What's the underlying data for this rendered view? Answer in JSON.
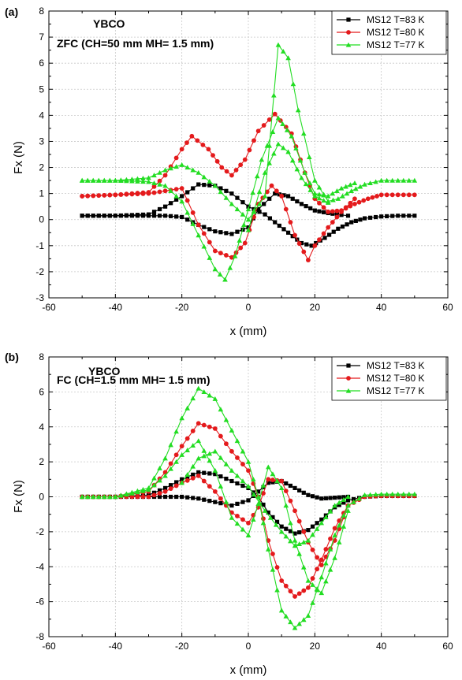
{
  "chart_data": [
    {
      "type": "line",
      "panel_label": "(a)",
      "annotations": [
        "YBCO",
        "ZFC (CH=50 mm MH= 1.5 mm)"
      ],
      "xlabel": "x (mm)",
      "ylabel": "Fx (N)",
      "xlim": [
        -60,
        60
      ],
      "ylim": [
        -3,
        8
      ],
      "xticks": [
        -60,
        -40,
        -20,
        0,
        20,
        40,
        60
      ],
      "yticks": [
        -3,
        -2,
        -1,
        0,
        1,
        2,
        3,
        4,
        5,
        6,
        7,
        8
      ],
      "grid": true,
      "legend_position": "top-right",
      "series": [
        {
          "name": "MS12 T=83 K",
          "color": "#000000",
          "marker": "square",
          "branches": [
            {
              "x": [
                -50,
                -40,
                -30,
                -25,
                -20,
                -15,
                -10,
                -5,
                0,
                5,
                8,
                12,
                16,
                19,
                23,
                27,
                31,
                35,
                40,
                45,
                50
              ],
              "y": [
                0.15,
                0.15,
                0.2,
                0.5,
                0.9,
                1.35,
                1.3,
                1.0,
                0.5,
                0.2,
                -0.1,
                -0.5,
                -0.9,
                -1.0,
                -0.7,
                -0.35,
                -0.1,
                0.05,
                0.12,
                0.15,
                0.15
              ]
            },
            {
              "x": [
                -50,
                -40,
                -30,
                -25,
                -20,
                -15,
                -10,
                -5,
                0,
                3,
                8,
                12,
                16,
                20,
                24,
                28,
                30
              ],
              "y": [
                0.15,
                0.15,
                0.15,
                0.15,
                0.1,
                -0.2,
                -0.45,
                -0.55,
                -0.3,
                0.4,
                1.0,
                0.9,
                0.6,
                0.35,
                0.25,
                0.18,
                0.15
              ]
            }
          ]
        },
        {
          "name": "MS12 T=80 K",
          "color": "#e41a1c",
          "marker": "circle",
          "branches": [
            {
              "x": [
                -50,
                -40,
                -30,
                -25,
                -20,
                -17,
                -12,
                -8,
                -5,
                -1,
                3,
                8,
                13,
                17,
                20,
                24,
                28,
                32,
                36,
                40,
                45,
                50
              ],
              "y": [
                0.9,
                0.95,
                1.05,
                1.7,
                2.7,
                3.2,
                2.7,
                2.0,
                1.7,
                2.3,
                3.4,
                4.05,
                3.3,
                1.8,
                0.8,
                0.3,
                0.35,
                0.6,
                0.8,
                0.95,
                0.95,
                0.95
              ]
            },
            {
              "x": [
                -50,
                -40,
                -30,
                -25,
                -20,
                -15,
                -10,
                -5,
                -1,
                3,
                7,
                10,
                14,
                18,
                20,
                24,
                28,
                32
              ],
              "y": [
                0.9,
                0.95,
                1.0,
                1.1,
                1.2,
                -0.2,
                -1.2,
                -1.45,
                -0.9,
                0.6,
                1.3,
                0.9,
                -0.6,
                -1.55,
                -1.0,
                -0.3,
                0.3,
                0.8
              ]
            }
          ]
        },
        {
          "name": "MS12 T=77 K",
          "color": "#22dd22",
          "marker": "triangle",
          "branches": [
            {
              "x": [
                -50,
                -40,
                -30,
                -25,
                -20,
                -15,
                -10,
                -5,
                0,
                5,
                9,
                12,
                15,
                20,
                24,
                27,
                31,
                35,
                40,
                45,
                50
              ],
              "y": [
                1.5,
                1.5,
                1.6,
                1.9,
                2.1,
                1.8,
                1.3,
                0.6,
                0.0,
                0.9,
                6.7,
                6.2,
                4.2,
                1.5,
                0.7,
                0.8,
                1.1,
                1.35,
                1.5,
                1.5,
                1.5
              ]
            },
            {
              "x": [
                -50,
                -40,
                -30,
                -25,
                -20,
                -15,
                -10,
                -7,
                -4,
                0,
                4,
                9,
                13,
                17,
                20,
                24,
                28,
                32
              ],
              "y": [
                1.5,
                1.5,
                1.45,
                1.3,
                0.7,
                -0.6,
                -1.9,
                -2.3,
                -1.4,
                0.4,
                2.3,
                3.9,
                3.2,
                1.8,
                1.0,
                0.9,
                1.2,
                1.4
              ]
            },
            {
              "x": [
                0,
                5,
                9,
                12,
                16,
                20,
                24
              ],
              "y": [
                -0.4,
                1.8,
                2.9,
                2.6,
                1.6,
                0.9,
                0.65
              ]
            }
          ]
        }
      ]
    },
    {
      "type": "line",
      "panel_label": "(b)",
      "annotations": [
        "YBCO",
        "FC (CH=1.5 mm MH= 1.5 mm)"
      ],
      "xlabel": "x (mm)",
      "ylabel": "Fx (N)",
      "xlim": [
        -60,
        60
      ],
      "ylim": [
        -8,
        8
      ],
      "xticks": [
        -60,
        -40,
        -20,
        0,
        20,
        40,
        60
      ],
      "yticks": [
        -8,
        -6,
        -4,
        -2,
        0,
        2,
        4,
        6,
        8
      ],
      "grid": true,
      "legend_position": "top-right",
      "series": [
        {
          "name": "MS12 T=83 K",
          "color": "#000000",
          "marker": "square",
          "branches": [
            {
              "x": [
                -50,
                -40,
                -30,
                -25,
                -20,
                -15,
                -10,
                -5,
                0,
                3,
                6,
                10,
                14,
                18,
                22,
                26,
                30,
                35,
                40,
                45,
                50
              ],
              "y": [
                0.0,
                0.0,
                0.1,
                0.5,
                1.0,
                1.4,
                1.3,
                0.9,
                0.5,
                0.0,
                -0.9,
                -1.7,
                -2.1,
                -1.9,
                -1.3,
                -0.6,
                -0.2,
                0.0,
                0.05,
                0.05,
                0.05
              ]
            },
            {
              "x": [
                -50,
                -40,
                -30,
                -25,
                -20,
                -15,
                -10,
                -5,
                0,
                3,
                6,
                10,
                14,
                18,
                22,
                26,
                30
              ],
              "y": [
                0.0,
                0.0,
                0.0,
                0.0,
                0.0,
                -0.1,
                -0.3,
                -0.5,
                -0.2,
                0.3,
                0.8,
                0.9,
                0.5,
                0.1,
                -0.1,
                -0.05,
                0.0
              ]
            }
          ]
        },
        {
          "name": "MS12 T=80 K",
          "color": "#e41a1c",
          "marker": "circle",
          "branches": [
            {
              "x": [
                -50,
                -40,
                -30,
                -25,
                -20,
                -15,
                -10,
                -5,
                0,
                3,
                6,
                10,
                14,
                18,
                22,
                26,
                30,
                35,
                40,
                45,
                50
              ],
              "y": [
                0.0,
                0.0,
                0.3,
                1.4,
                2.9,
                4.2,
                3.9,
                2.6,
                1.5,
                0.0,
                -2.5,
                -4.8,
                -5.7,
                -5.2,
                -3.6,
                -1.8,
                -0.5,
                0.0,
                0.05,
                0.05,
                0.05
              ]
            },
            {
              "x": [
                -50,
                -40,
                -30,
                -25,
                -20,
                -15,
                -10,
                -5,
                0,
                3,
                6,
                10,
                14,
                18,
                22,
                26,
                30
              ],
              "y": [
                0.0,
                0.0,
                0.0,
                0.3,
                0.8,
                1.2,
                0.3,
                -0.9,
                -1.5,
                -0.6,
                1.0,
                0.9,
                -0.8,
                -2.6,
                -3.9,
                -2.5,
                -0.5
              ]
            }
          ]
        },
        {
          "name": "MS12 T=77 K",
          "color": "#22dd22",
          "marker": "triangle",
          "branches": [
            {
              "x": [
                -50,
                -40,
                -30,
                -25,
                -20,
                -15,
                -10,
                -5,
                0,
                3,
                6,
                10,
                14,
                18,
                22,
                26,
                30,
                35,
                40,
                45,
                50
              ],
              "y": [
                0.0,
                0.0,
                0.5,
                2.2,
                4.5,
                6.2,
                5.6,
                3.8,
                2.0,
                0.0,
                -3.0,
                -6.5,
                -7.5,
                -6.8,
                -4.6,
                -2.2,
                -0.5,
                0.1,
                0.15,
                0.15,
                0.15
              ]
            },
            {
              "x": [
                -50,
                -40,
                -30,
                -25,
                -20,
                -15,
                -10,
                -5,
                0,
                3,
                6,
                10,
                14,
                18,
                22,
                26,
                30
              ],
              "y": [
                0.0,
                0.0,
                0.4,
                1.2,
                2.4,
                3.2,
                1.5,
                -1.2,
                -2.2,
                -0.4,
                1.7,
                0.5,
                -2.5,
                -4.8,
                -5.5,
                -3.5,
                -0.8
              ]
            },
            {
              "x": [
                -20,
                -15,
                -10,
                -5,
                0,
                5,
                10,
                14,
                18,
                22,
                26,
                30
              ],
              "y": [
                0.8,
                2.2,
                2.6,
                1.5,
                0.6,
                -0.8,
                -2.0,
                -2.8,
                -2.5,
                -1.5,
                -0.5,
                0.0
              ]
            }
          ]
        }
      ]
    }
  ]
}
